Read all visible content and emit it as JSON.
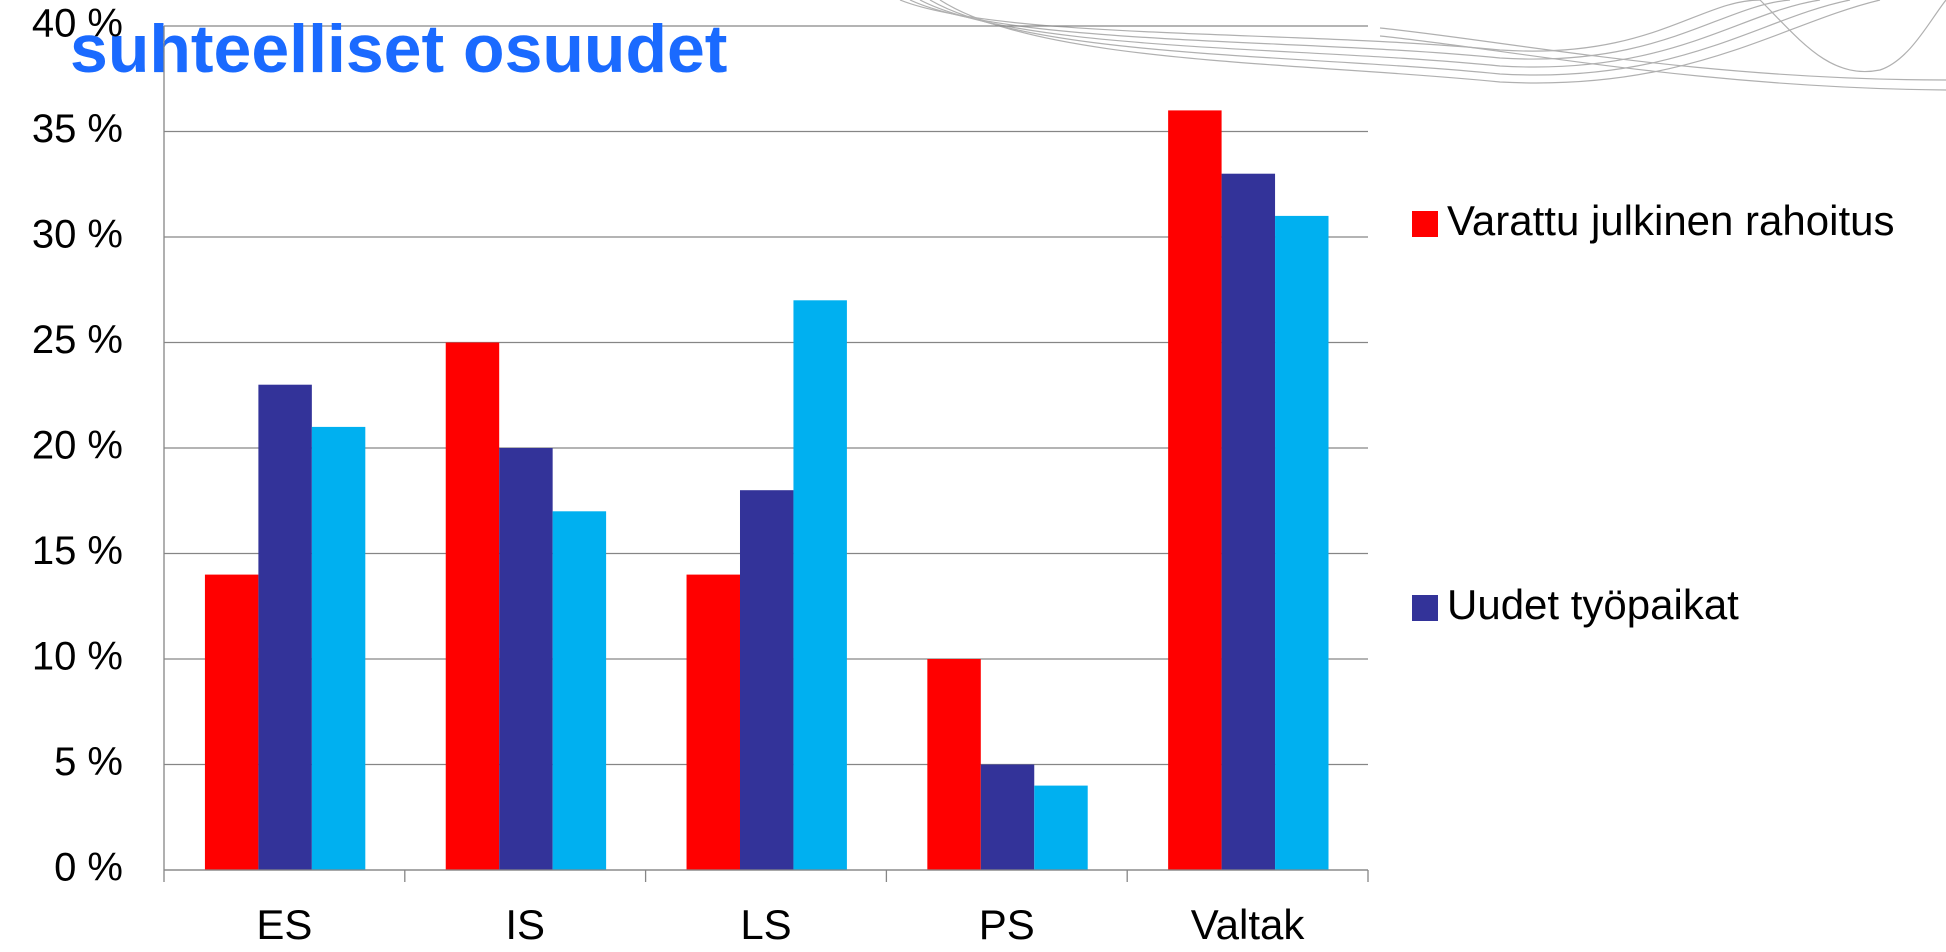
{
  "chart_data": {
    "type": "bar",
    "title": "suhteelliset osuudet",
    "categories": [
      "ES",
      "IS",
      "LS",
      "PS",
      "Valtak"
    ],
    "series": [
      {
        "name": "Varattu julkinen rahoitus",
        "color": "#ff0000",
        "values": [
          14,
          25,
          14,
          10,
          36
        ]
      },
      {
        "name": "Uudet työpaikat",
        "color": "#333399",
        "values": [
          23,
          20,
          18,
          5,
          33
        ]
      },
      {
        "color": "#00b0f0",
        "values": [
          21,
          17,
          27,
          4,
          31
        ]
      }
    ],
    "ylim": [
      0,
      40
    ],
    "yticks": [
      {
        "value": 0,
        "label": "0 %"
      },
      {
        "value": 5,
        "label": "5 %"
      },
      {
        "value": 10,
        "label": "10 %"
      },
      {
        "value": 15,
        "label": "15 %"
      },
      {
        "value": 20,
        "label": "20 %"
      },
      {
        "value": 25,
        "label": "25 %"
      },
      {
        "value": 30,
        "label": "30 %"
      },
      {
        "value": 35,
        "label": "35 %"
      },
      {
        "value": 40,
        "label": "40 %"
      }
    ],
    "grid": true,
    "legend": "right"
  }
}
